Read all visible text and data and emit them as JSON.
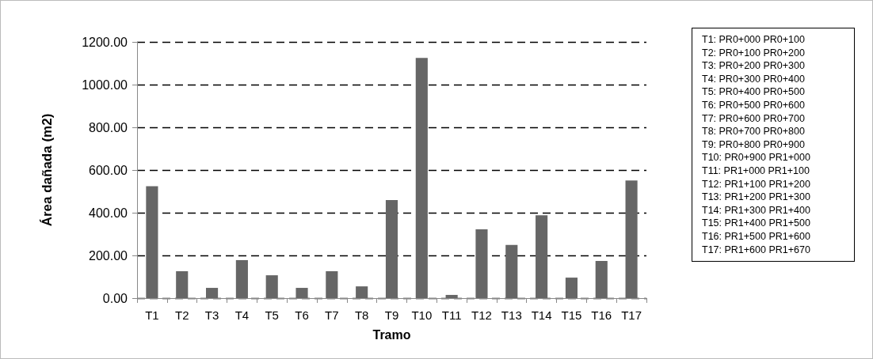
{
  "chart_data": {
    "type": "bar",
    "xlabel": "Tramo",
    "ylabel": "Área dañada (m2)",
    "categories": [
      "T1",
      "T2",
      "T3",
      "T4",
      "T5",
      "T6",
      "T7",
      "T8",
      "T9",
      "T10",
      "T11",
      "T12",
      "T13",
      "T14",
      "T15",
      "T16",
      "T17"
    ],
    "values": [
      524,
      126,
      48,
      178,
      107,
      48,
      126,
      55,
      459,
      1125,
      15,
      322,
      249,
      388,
      96,
      174,
      551
    ],
    "color": "#666666",
    "ylim": [
      0,
      1200
    ],
    "yticks": [
      {
        "value": 0,
        "label": "0.00"
      },
      {
        "value": 200,
        "label": "200.00"
      },
      {
        "value": 400,
        "label": "400.00"
      },
      {
        "value": 600,
        "label": "600.00"
      },
      {
        "value": 800,
        "label": "800.00"
      },
      {
        "value": 1000,
        "label": "1000.00"
      },
      {
        "value": 1200,
        "label": "1200.00"
      }
    ],
    "grid": "y",
    "line_style": "dashed",
    "annotations": [
      "T1: PR0+000 PR0+100",
      "T2: PR0+100 PR0+200",
      "T3: PR0+200 PR0+300",
      "T4: PR0+300 PR0+400",
      "T5: PR0+400 PR0+500",
      "T6: PR0+500 PR0+600",
      "T7: PR0+600 PR0+700",
      "T8: PR0+700 PR0+800",
      "T9: PR0+800 PR0+900",
      "T10: PR0+900 PR1+000",
      "T11: PR1+000 PR1+100",
      "T12: PR1+100 PR1+200",
      "T13: PR1+200 PR1+300",
      "T14: PR1+300 PR1+400",
      "T15: PR1+400 PR1+500",
      "T16: PR1+500 PR1+600",
      "T17: PR1+600 PR1+670"
    ]
  }
}
